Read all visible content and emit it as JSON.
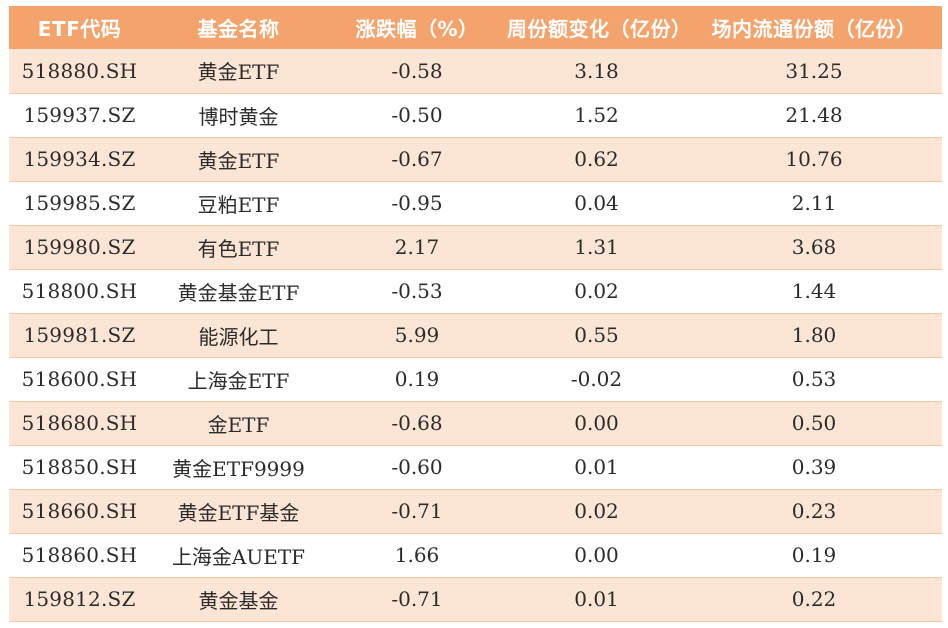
{
  "table": {
    "headers": [
      "ETF代码",
      "基金名称",
      "涨跌幅（%）",
      "周份额变化（亿份）",
      "场内流通份额（亿份）"
    ],
    "header_bg": "#f4a36c",
    "stripe_bg": "#fde5d6",
    "rows": [
      [
        "518880.SH",
        "黄金ETF",
        "-0.58",
        "3.18",
        "31.25"
      ],
      [
        "159937.SZ",
        "博时黄金",
        "-0.50",
        "1.52",
        "21.48"
      ],
      [
        "159934.SZ",
        "黄金ETF",
        "-0.67",
        "0.62",
        "10.76"
      ],
      [
        "159985.SZ",
        "豆粕ETF",
        "-0.95",
        "0.04",
        "2.11"
      ],
      [
        "159980.SZ",
        "有色ETF",
        "2.17",
        "1.31",
        "3.68"
      ],
      [
        "518800.SH",
        "黄金基金ETF",
        "-0.53",
        "0.02",
        "1.44"
      ],
      [
        "159981.SZ",
        "能源化工",
        "5.99",
        "0.55",
        "1.80"
      ],
      [
        "518600.SH",
        "上海金ETF",
        "0.19",
        "-0.02",
        "0.53"
      ],
      [
        "518680.SH",
        "金ETF",
        "-0.68",
        "0.00",
        "0.50"
      ],
      [
        "518850.SH",
        "黄金ETF9999",
        "-0.60",
        "0.01",
        "0.39"
      ],
      [
        "518660.SH",
        "黄金ETF基金",
        "-0.71",
        "0.02",
        "0.23"
      ],
      [
        "518860.SH",
        "上海金AUETF",
        "1.66",
        "0.00",
        "0.19"
      ],
      [
        "159812.SZ",
        "黄金基金",
        "-0.71",
        "0.01",
        "0.22"
      ]
    ]
  }
}
